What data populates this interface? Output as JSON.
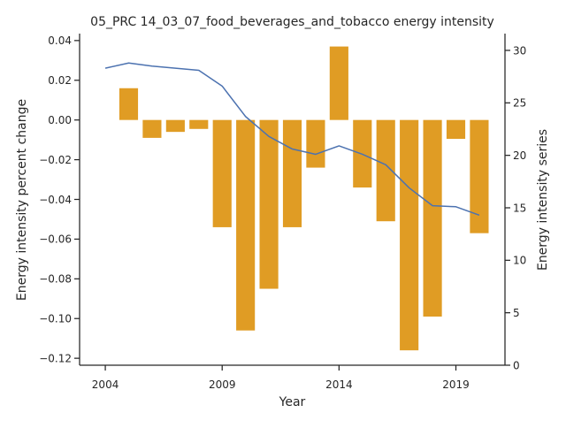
{
  "chart_data": {
    "type": "bar",
    "title": "05_PRC 14_03_07_food_beverages_and_tobacco energy intensity",
    "xlabel": "Year",
    "ylabel_left": "Energy intensity percent change",
    "ylabel_right": "Energy intensity series",
    "x": [
      2004,
      2005,
      2006,
      2007,
      2008,
      2009,
      2010,
      2011,
      2012,
      2013,
      2014,
      2015,
      2016,
      2017,
      2018,
      2019,
      2020
    ],
    "xlim": [
      2002.9,
      2021.1
    ],
    "x_ticks": [
      2004,
      2009,
      2014,
      2019
    ],
    "ylim_left": [
      -0.1235,
      0.0435
    ],
    "y_ticks_left": [
      -0.12,
      -0.1,
      -0.08,
      -0.06,
      -0.04,
      -0.02,
      0.0,
      0.02,
      0.04
    ],
    "y_tick_labels_left": [
      "−0.12",
      "−0.10",
      "−0.08",
      "−0.06",
      "−0.04",
      "−0.02",
      "0.00",
      "0.02",
      "0.04"
    ],
    "ylim_right": [
      0,
      31.6
    ],
    "y_ticks_right": [
      0,
      5,
      10,
      15,
      20,
      25,
      30
    ],
    "y_tick_labels_right": [
      "0",
      "5",
      "10",
      "15",
      "20",
      "25",
      "30"
    ],
    "grid": false,
    "series": [
      {
        "type": "bar",
        "axis": "left",
        "color": "#e09c24",
        "values": [
          null,
          0.016,
          -0.009,
          -0.006,
          -0.0045,
          -0.054,
          -0.106,
          -0.085,
          -0.054,
          -0.024,
          0.037,
          -0.034,
          -0.051,
          -0.116,
          -0.099,
          -0.0095,
          -0.057
        ]
      },
      {
        "type": "line",
        "axis": "right",
        "color": "#4c72b0",
        "values": [
          28.3,
          28.8,
          28.5,
          28.3,
          28.1,
          26.6,
          23.7,
          21.8,
          20.6,
          20.1,
          20.9,
          20.1,
          19.1,
          16.9,
          15.2,
          15.1,
          14.3
        ]
      }
    ]
  }
}
